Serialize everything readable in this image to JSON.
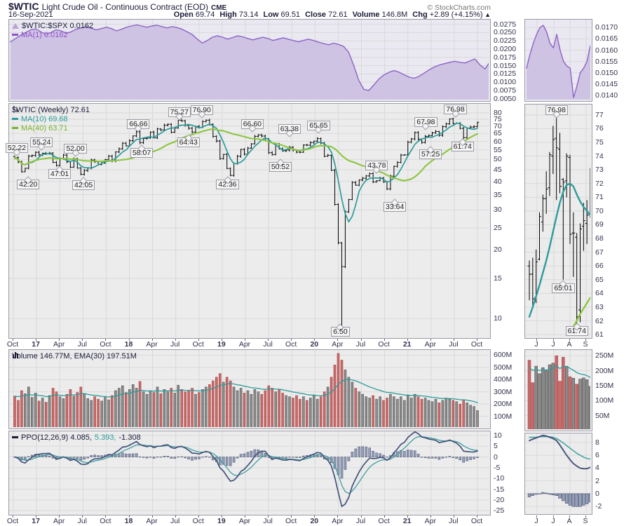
{
  "header": {
    "symbol": "$WTIC",
    "title": "Light Crude Oil - Continuous Contract (EOD)",
    "exchange": "CME",
    "copyright": "© StockCharts.com",
    "date": "16-Sep-2021",
    "quote": [
      {
        "label": "Open",
        "value": "69.74"
      },
      {
        "label": "High",
        "value": "73.14"
      },
      {
        "label": "Low",
        "value": "69.51"
      },
      {
        "label": "Close",
        "value": "72.61"
      },
      {
        "label": "Volume",
        "value": "146.8M"
      },
      {
        "label": "Chg",
        "value": "+2.89 (+4.15%)"
      }
    ],
    "chg_arrow": "▲"
  },
  "colors": {
    "navy": "#1c1c3a",
    "teal": "#2d9b9b",
    "green_line": "#8cc63f",
    "green_text": "#7ab32e",
    "purple": "#8f52cc",
    "purple_line": "#8b63c6",
    "purple_fill": "#cfc3e3",
    "bar_red": "#c96a6a",
    "bar_red_edge": "#a84848",
    "bar_gray": "#8c8c8c",
    "bar_gray_edge": "#555555",
    "ppo_line": "#44527a",
    "ppo_signal": "#3f9f9f",
    "hist_fill": "#96a0b8",
    "hist_edge": "#505a78",
    "grid": "#d9d9d9",
    "panel_bg": "#ececec",
    "ratio_bg": "#eae8f1",
    "tick_text": "#33334d",
    "border": "#9a9aa6",
    "copyright": "#777777",
    "candle": "#000000"
  },
  "panels": {
    "ratio": {
      "legend": "$WTIC:$SPX 0.0162",
      "ma_legend": "MA(1) 0.0162"
    },
    "price": {
      "legend": "$WTIC (Weekly) 72.61",
      "ma10": "MA(10) 69.68",
      "ma40": "MA(40) 63.71"
    },
    "volume": {
      "legend": "Volume 146.77M, EMA(30) 197.51M"
    },
    "ppo": {
      "part1": "PPO(12,26,9) 4.085,",
      "part2": "5.393,",
      "part3": "-1.308"
    }
  },
  "chart_data": {
    "type": "multi-panel-financial",
    "x_quarter_labels": [
      "Oct",
      "17",
      "Apr",
      "Jul",
      "Oct",
      "18",
      "Apr",
      "Jul",
      "Oct",
      "19",
      "Apr",
      "Jul",
      "Oct",
      "20",
      "Apr",
      "Jul",
      "Oct",
      "21",
      "Apr",
      "Jul",
      "Oct"
    ],
    "ratio_panel": {
      "type": "area",
      "series": "$WTIC:$SPX",
      "last": "0.0162",
      "ylim": [
        0.0043,
        0.0289
      ],
      "yticks": [
        "0.0275",
        "0.0250",
        "0.0225",
        "0.0200",
        "0.0175",
        "0.0150",
        "0.0125",
        "0.0100",
        "0.0075",
        "0.0050"
      ],
      "values": [
        0.0222,
        0.0232,
        0.0242,
        0.025,
        0.0258,
        0.0261,
        0.0252,
        0.0245,
        0.025,
        0.0258,
        0.0255,
        0.0248,
        0.0252,
        0.026,
        0.0264,
        0.0268,
        0.0263,
        0.0258,
        0.0262,
        0.0266,
        0.0262,
        0.0255,
        0.026,
        0.0266,
        0.027,
        0.0273,
        0.027,
        0.0266,
        0.027,
        0.0272,
        0.0268,
        0.0264,
        0.0268,
        0.0265,
        0.026,
        0.0252,
        0.0244,
        0.023,
        0.0218,
        0.0226,
        0.0236,
        0.024,
        0.0236,
        0.023,
        0.0235,
        0.024,
        0.0237,
        0.0232,
        0.0228,
        0.0232,
        0.0236,
        0.0232,
        0.0226,
        0.023,
        0.0234,
        0.023,
        0.0226,
        0.0222,
        0.0226,
        0.023,
        0.0226,
        0.0221,
        0.0217,
        0.0213,
        0.0218,
        0.0214,
        0.0208,
        0.019,
        0.015,
        0.0105,
        0.0078,
        0.0075,
        0.0092,
        0.011,
        0.0122,
        0.013,
        0.0135,
        0.013,
        0.0122,
        0.0115,
        0.0112,
        0.0118,
        0.0128,
        0.0138,
        0.0146,
        0.0152,
        0.0156,
        0.016,
        0.0163,
        0.016,
        0.0158,
        0.0164,
        0.017,
        0.0152,
        0.014,
        0.0162
      ]
    },
    "price_panel": {
      "type": "ohlc",
      "series": "$WTIC Weekly",
      "scale": "log",
      "ylim": [
        8.21,
        87.7
      ],
      "yticks": [
        80,
        75,
        70,
        65,
        60,
        55,
        50,
        45,
        40,
        35,
        30,
        25,
        20,
        15,
        10
      ],
      "ma_fast_window": 5,
      "ma_slow_window": 24,
      "low_override": {
        "index": 94,
        "low": 6.5
      },
      "closes": [
        50.9,
        48.7,
        44.1,
        45.7,
        51.7,
        52.0,
        53.7,
        52.4,
        53.2,
        52.8,
        53.3,
        48.5,
        47.0,
        50.6,
        52.2,
        48.8,
        46.2,
        50.3,
        45.8,
        43.0,
        44.7,
        45.8,
        49.7,
        48.8,
        47.4,
        48.2,
        49.9,
        51.7,
        49.3,
        53.9,
        55.6,
        58.9,
        57.3,
        60.4,
        63.4,
        66.1,
        59.2,
        61.7,
        62.0,
        65.9,
        62.1,
        68.0,
        67.4,
        70.7,
        71.3,
        65.8,
        68.6,
        74.2,
        73.8,
        70.5,
        68.5,
        65.9,
        69.8,
        68.9,
        73.3,
        74.3,
        71.3,
        63.1,
        60.2,
        50.4,
        52.6,
        45.6,
        42.5,
        48.0,
        51.6,
        55.3,
        52.7,
        56.0,
        58.5,
        63.1,
        64.0,
        63.3,
        61.7,
        53.5,
        52.5,
        58.5,
        55.6,
        54.5,
        54.9,
        56.5,
        54.9,
        53.8,
        53.7,
        57.8,
        57.7,
        59.2,
        60.1,
        61.7,
        59.0,
        51.6,
        52.1,
        44.8,
        31.7,
        21.5,
        16.9,
        29.4,
        33.3,
        39.6,
        38.5,
        40.6,
        41.3,
        42.3,
        43.3,
        39.8,
        40.3,
        41.4,
        39.8,
        37.1,
        42.2,
        46.6,
        48.5,
        52.2,
        52.3,
        59.5,
        61.5,
        65.6,
        61.4,
        59.3,
        63.1,
        63.6,
        65.4,
        66.3,
        63.8,
        69.6,
        71.6,
        75.2,
        71.8,
        72.1,
        68.4,
        62.3,
        68.7,
        69.3,
        69.7,
        72.6
      ],
      "annotations": [
        {
          "frac": 0.01,
          "value": 52.22,
          "side": "above"
        },
        {
          "frac": 0.034,
          "value": 42.2,
          "side": "below"
        },
        {
          "frac": 0.062,
          "value": 55.24,
          "side": "above"
        },
        {
          "frac": 0.1,
          "value": 47.01,
          "side": "below"
        },
        {
          "frac": 0.133,
          "value": 52.0,
          "side": "above"
        },
        {
          "frac": 0.15,
          "value": 42.05,
          "side": "below"
        },
        {
          "frac": 0.265,
          "value": 66.66,
          "side": "above"
        },
        {
          "frac": 0.272,
          "value": 58.07,
          "side": "below"
        },
        {
          "frac": 0.351,
          "value": 75.27,
          "side": "above"
        },
        {
          "frac": 0.37,
          "value": 64.43,
          "side": "below"
        },
        {
          "frac": 0.398,
          "value": 76.9,
          "side": "above"
        },
        {
          "frac": 0.452,
          "value": 42.36,
          "side": "below"
        },
        {
          "frac": 0.504,
          "value": 66.6,
          "side": "above"
        },
        {
          "frac": 0.563,
          "value": 50.52,
          "side": "below"
        },
        {
          "frac": 0.582,
          "value": 63.38,
          "side": "above"
        },
        {
          "frac": 0.643,
          "value": 65.65,
          "side": "above"
        },
        {
          "frac": 0.693,
          "value": 6.5,
          "side": "below"
        },
        {
          "frac": 0.765,
          "value": 43.78,
          "side": "above"
        },
        {
          "frac": 0.803,
          "value": 33.64,
          "side": "below"
        },
        {
          "frac": 0.868,
          "value": 67.98,
          "side": "above"
        },
        {
          "frac": 0.878,
          "value": 57.25,
          "side": "below"
        },
        {
          "frac": 0.93,
          "value": 76.98,
          "side": "above"
        },
        {
          "frac": 0.945,
          "value": 61.74,
          "side": "below"
        }
      ]
    },
    "volume_panel": {
      "type": "bar",
      "ymax": 620,
      "ema_window": 15,
      "yticks": [
        "600M",
        "500M",
        "400M",
        "300M",
        "200M",
        "100M"
      ],
      "values_millions": [
        265,
        230,
        310,
        285,
        340,
        255,
        290,
        225,
        250,
        215,
        270,
        330,
        300,
        260,
        245,
        280,
        320,
        265,
        295,
        340,
        285,
        245,
        230,
        260,
        240,
        225,
        255,
        235,
        270,
        310,
        330,
        350,
        295,
        320,
        360,
        330,
        385,
        300,
        280,
        310,
        295,
        340,
        285,
        320,
        300,
        330,
        290,
        355,
        320,
        300,
        310,
        330,
        280,
        295,
        320,
        340,
        360,
        390,
        420,
        450,
        380,
        420,
        390,
        340,
        310,
        330,
        290,
        310,
        280,
        320,
        300,
        280,
        310,
        350,
        330,
        300,
        320,
        290,
        270,
        260,
        250,
        270,
        240,
        260,
        230,
        250,
        270,
        240,
        260,
        300,
        340,
        420,
        520,
        615,
        560,
        480,
        420,
        380,
        330,
        300,
        280,
        260,
        250,
        270,
        240,
        260,
        230,
        250,
        280,
        260,
        240,
        260,
        230,
        270,
        250,
        280,
        260,
        240,
        250,
        230,
        220,
        240,
        210,
        230,
        250,
        240,
        230,
        220,
        200,
        235,
        210,
        190,
        180,
        147
      ]
    },
    "ppo_panel": {
      "type": "line+histogram",
      "params": [
        12,
        26,
        9
      ],
      "fast": 6,
      "slow": 13,
      "signal": 5,
      "ylim": [
        -26.9,
        11.94
      ],
      "yticks": [
        10,
        5,
        0,
        -5,
        -10,
        -15,
        -20,
        -25
      ]
    },
    "mini": {
      "xlabels": [
        "J",
        "J",
        "A",
        "S"
      ],
      "ratio": {
        "ylim": [
          0.01375,
          0.01735
        ],
        "yticks": [
          "0.0170",
          "0.0165",
          "0.0160",
          "0.0155",
          "0.0150",
          "0.0145",
          "0.0140"
        ],
        "values": [
          0.0152,
          0.0158,
          0.0163,
          0.0167,
          0.017,
          0.0171,
          0.0168,
          0.0163,
          0.0161,
          0.0167,
          0.016,
          0.0155,
          0.0153,
          0.0152,
          0.0139,
          0.0144,
          0.015,
          0.0152,
          0.0155,
          0.0162
        ]
      },
      "price": {
        "ylim": [
          60.75,
          77.76
        ],
        "yticks": [
          77,
          76,
          75,
          74,
          73,
          72,
          71,
          70,
          69,
          68,
          67,
          66,
          65,
          64,
          63,
          62,
          61
        ],
        "bars": [
          [
            66.0,
            66.4,
            63.5,
            65.4
          ],
          [
            65.4,
            66.6,
            62.9,
            63.6
          ],
          [
            63.7,
            67.2,
            63.3,
            66.3
          ],
          [
            66.5,
            69.9,
            66.4,
            69.6
          ],
          [
            69.2,
            71.2,
            68.5,
            70.9
          ],
          [
            70.9,
            72.9,
            69.8,
            71.6
          ],
          [
            71.7,
            74.3,
            71.1,
            74.1
          ],
          [
            74.0,
            76.2,
            72.7,
            75.2
          ],
          [
            75.3,
            76.98,
            70.8,
            74.6
          ],
          [
            74.5,
            75.7,
            71.3,
            71.8
          ],
          [
            72.3,
            72.4,
            65.01,
            72.1
          ],
          [
            72.2,
            74.2,
            71.0,
            74.0
          ],
          [
            73.9,
            74.1,
            67.6,
            68.3
          ],
          [
            68.4,
            69.9,
            65.2,
            68.4
          ],
          [
            68.1,
            68.4,
            61.74,
            62.3
          ],
          [
            62.8,
            69.1,
            61.9,
            68.7
          ],
          [
            68.9,
            70.6,
            67.1,
            69.3
          ],
          [
            69.1,
            70.8,
            67.6,
            69.7
          ],
          [
            69.74,
            73.14,
            69.51,
            72.61
          ]
        ],
        "ma10": [
          62.3,
          63.0,
          63.8,
          64.6,
          65.5,
          66.4,
          67.4,
          68.5,
          69.6,
          70.6,
          71.4,
          71.9,
          72.0,
          71.8,
          71.2,
          70.7,
          70.3,
          70.0,
          69.7
        ],
        "ma40": [
          null,
          null,
          null,
          null,
          null,
          null,
          null,
          null,
          null,
          null,
          null,
          null,
          null,
          61.6,
          62.0,
          62.5,
          62.9,
          63.3,
          63.7
        ],
        "annotations": [
          {
            "bar": 8,
            "value": 76.98,
            "side": "above"
          },
          {
            "bar": 10,
            "value": 65.01,
            "side": "below"
          },
          {
            "bar": 14,
            "value": 61.74,
            "side": "below"
          }
        ]
      },
      "volume": {
        "ymax": 260,
        "yticks": [
          "250M",
          "200M",
          "150M",
          "100M",
          "50M"
        ],
        "values": [
          235,
          160,
          215,
          190,
          210,
          200,
          220,
          225,
          250,
          165,
          245,
          215,
          180,
          175,
          155,
          172,
          176,
          170,
          147
        ]
      },
      "ppo": {
        "ylim": [
          -3.18,
          9.4
        ],
        "yticks": [
          8,
          6,
          4,
          2,
          0,
          -2
        ],
        "line": [
          8.3,
          8.5,
          8.7,
          8.9,
          9.1,
          9.0,
          8.8,
          8.6,
          8.3,
          7.6,
          6.8,
          6.0,
          5.3,
          4.7,
          4.3,
          4.0,
          3.9,
          3.9,
          4.1
        ],
        "signal": [
          8.8,
          8.8,
          8.8,
          8.9,
          8.9,
          8.9,
          8.9,
          8.8,
          8.6,
          8.3,
          7.9,
          7.5,
          7.1,
          6.7,
          6.3,
          6.0,
          5.7,
          5.5,
          5.4
        ],
        "hist": [
          -0.5,
          -0.3,
          -0.1,
          0.0,
          0.2,
          0.1,
          -0.1,
          -0.2,
          -0.3,
          -0.7,
          -1.1,
          -1.5,
          -1.8,
          -2.0,
          -2.0,
          -2.0,
          -1.8,
          -1.6,
          -1.3
        ]
      }
    }
  }
}
